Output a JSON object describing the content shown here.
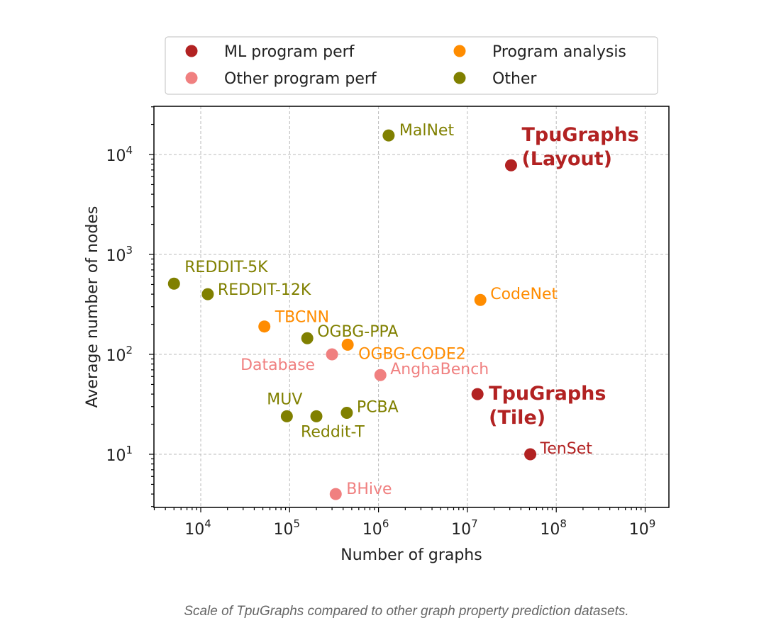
{
  "chart_data": {
    "type": "scatter",
    "xlabel": "Number of graphs",
    "ylabel": "Average number of nodes",
    "xscale": "log",
    "yscale": "log",
    "xlim": [
      3000,
      2000000000
    ],
    "ylim": [
      3,
      30000
    ],
    "xticks": [
      {
        "v": 10000,
        "base": "10",
        "exp": "4"
      },
      {
        "v": 100000,
        "base": "10",
        "exp": "5"
      },
      {
        "v": 1000000,
        "base": "10",
        "exp": "6"
      },
      {
        "v": 10000000,
        "base": "10",
        "exp": "7"
      },
      {
        "v": 100000000,
        "base": "10",
        "exp": "8"
      },
      {
        "v": 1000000000,
        "base": "10",
        "exp": "9"
      }
    ],
    "yticks": [
      {
        "v": 10,
        "base": "10",
        "exp": "1"
      },
      {
        "v": 100,
        "base": "10",
        "exp": "2"
      },
      {
        "v": 1000,
        "base": "10",
        "exp": "3"
      },
      {
        "v": 10000,
        "base": "10",
        "exp": "4"
      }
    ],
    "grid": true,
    "legend_position": "top (above plot)",
    "categories": [
      {
        "name": "ML program perf",
        "color": "#b22222"
      },
      {
        "name": "Other program perf",
        "color": "#f08080"
      },
      {
        "name": "Program analysis",
        "color": "#ff8c00"
      },
      {
        "name": "Other",
        "color": "#808000"
      }
    ],
    "points": [
      {
        "label": [
          "REDDIT-5K"
        ],
        "x": 5000,
        "y": 510,
        "category": 3
      },
      {
        "label": [
          "REDDIT-12K"
        ],
        "x": 12000,
        "y": 400,
        "category": 3
      },
      {
        "label": [
          "MalNet"
        ],
        "x": 1300000,
        "y": 15500,
        "category": 3
      },
      {
        "label": [
          "TpuGraphs",
          "(Layout)"
        ],
        "x": 31000000,
        "y": 7800,
        "category": 0,
        "bold": true
      },
      {
        "label": [
          "CodeNet"
        ],
        "x": 14000000,
        "y": 350,
        "category": 2
      },
      {
        "label": [
          "TBCNN"
        ],
        "x": 52000,
        "y": 190,
        "category": 2
      },
      {
        "label": [
          "OGBG-PPA"
        ],
        "x": 158000,
        "y": 145,
        "category": 3
      },
      {
        "label": [
          "Database"
        ],
        "x": 300000,
        "y": 100,
        "category": 1
      },
      {
        "label": [
          "OGBG-CODE2"
        ],
        "x": 450000,
        "y": 125,
        "category": 2
      },
      {
        "label": [
          "AnghaBench"
        ],
        "x": 1050000,
        "y": 62,
        "category": 1
      },
      {
        "label": [
          "TpuGraphs",
          "(Tile)"
        ],
        "x": 13000000,
        "y": 40,
        "category": 0,
        "bold": true
      },
      {
        "label": [
          "MUV"
        ],
        "x": 93000,
        "y": 24,
        "category": 3
      },
      {
        "label": [
          "Reddit-T"
        ],
        "x": 200000,
        "y": 24,
        "category": 3
      },
      {
        "label": [
          "PCBA"
        ],
        "x": 440000,
        "y": 26,
        "category": 3
      },
      {
        "label": [
          "TenSet"
        ],
        "x": 51000000,
        "y": 10,
        "category": 0
      },
      {
        "label": [
          "BHive"
        ],
        "x": 330000,
        "y": 4,
        "category": 1
      }
    ]
  },
  "caption": "Scale of TpuGraphs compared to other graph property prediction datasets."
}
